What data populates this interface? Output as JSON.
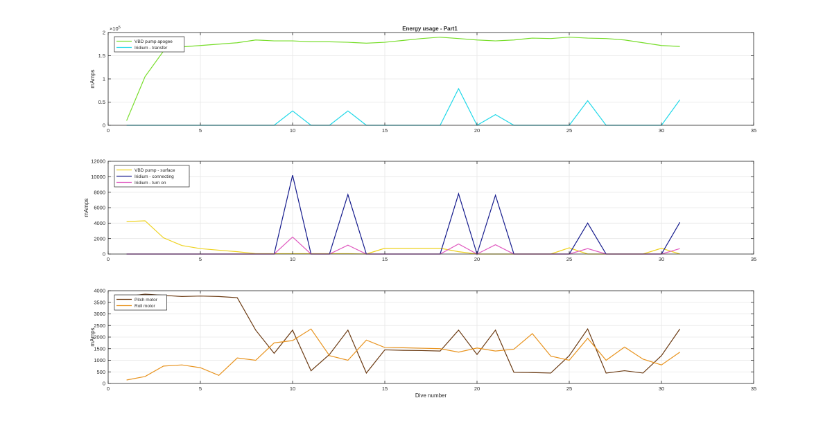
{
  "figure": {
    "title": "Energy usage - Part1"
  },
  "chart_data": [
    {
      "type": "line",
      "title": "Energy usage - Part1",
      "xlabel": "",
      "ylabel": "mAmps",
      "xlim": [
        0,
        35
      ],
      "ylim": [
        0,
        200000
      ],
      "x_ticks": [
        "0",
        "5",
        "10",
        "15",
        "20",
        "25",
        "30",
        "35"
      ],
      "y_ticks": [
        "0",
        "0.5",
        "1",
        "1.5",
        "2"
      ],
      "y_exponent_label": "×10",
      "y_exponent_power": "5",
      "grid": true,
      "legend_position": "top-left",
      "x": [
        1,
        2,
        3,
        4,
        5,
        6,
        7,
        8,
        9,
        10,
        11,
        12,
        13,
        14,
        15,
        16,
        17,
        18,
        19,
        20,
        21,
        22,
        23,
        24,
        25,
        26,
        27,
        28,
        29,
        30,
        31
      ],
      "series": [
        {
          "name": "VBD pump apogee",
          "color": "#77dd2a",
          "values": [
            10000,
            105000,
            160000,
            169000,
            172000,
            175000,
            178000,
            184000,
            182000,
            182000,
            180000,
            180000,
            179000,
            177000,
            179000,
            183000,
            187000,
            190000,
            187000,
            184000,
            182000,
            184000,
            188000,
            187000,
            190000,
            188000,
            187000,
            184000,
            178000,
            172000,
            170000
          ]
        },
        {
          "name": "Iridium - transfer",
          "color": "#22d8e8",
          "values": [
            0,
            0,
            0,
            0,
            0,
            0,
            0,
            0,
            0,
            31000,
            0,
            0,
            31000,
            0,
            0,
            0,
            0,
            0,
            79000,
            0,
            23000,
            0,
            0,
            0,
            0,
            53000,
            0,
            0,
            0,
            0,
            55000
          ]
        }
      ]
    },
    {
      "type": "line",
      "title": "",
      "xlabel": "",
      "ylabel": "mAmps",
      "xlim": [
        0,
        35
      ],
      "ylim": [
        0,
        12000
      ],
      "x_ticks": [
        "0",
        "5",
        "10",
        "15",
        "20",
        "25",
        "30",
        "35"
      ],
      "y_ticks": [
        "0",
        "2000",
        "4000",
        "6000",
        "8000",
        "10000",
        "12000"
      ],
      "grid": true,
      "legend_position": "top-left",
      "x": [
        1,
        2,
        3,
        4,
        5,
        6,
        7,
        8,
        9,
        10,
        11,
        12,
        13,
        14,
        15,
        16,
        17,
        18,
        19,
        20,
        21,
        22,
        23,
        24,
        25,
        26,
        27,
        28,
        29,
        30,
        31
      ],
      "series": [
        {
          "name": "VBD pump - surface",
          "color": "#eed21e",
          "values": [
            4200,
            4300,
            2100,
            1100,
            700,
            500,
            300,
            50,
            50,
            50,
            50,
            50,
            50,
            0,
            750,
            750,
            750,
            750,
            300,
            0,
            0,
            0,
            0,
            0,
            800,
            0,
            0,
            0,
            0,
            750,
            0
          ]
        },
        {
          "name": "Iridium - connecting",
          "color": "#141a8c",
          "values": [
            0,
            0,
            0,
            0,
            0,
            0,
            0,
            0,
            0,
            10200,
            0,
            0,
            7700,
            0,
            0,
            0,
            0,
            0,
            7800,
            0,
            7600,
            0,
            0,
            0,
            0,
            4000,
            0,
            0,
            0,
            0,
            4100
          ]
        },
        {
          "name": "Iridium - turn on",
          "color": "#e05ac0",
          "values": [
            0,
            0,
            0,
            0,
            0,
            0,
            0,
            0,
            0,
            2200,
            0,
            0,
            1150,
            0,
            0,
            0,
            0,
            0,
            1300,
            0,
            1200,
            0,
            0,
            0,
            0,
            700,
            0,
            0,
            0,
            0,
            700
          ]
        }
      ]
    },
    {
      "type": "line",
      "title": "",
      "xlabel": "Dive number",
      "ylabel": "mAmps",
      "xlim": [
        0,
        35
      ],
      "ylim": [
        0,
        4000
      ],
      "x_ticks": [
        "0",
        "5",
        "10",
        "15",
        "20",
        "25",
        "30",
        "35"
      ],
      "y_ticks": [
        "0",
        "500",
        "1000",
        "1500",
        "2000",
        "2500",
        "3000",
        "3500",
        "4000"
      ],
      "grid": true,
      "legend_position": "top-left",
      "x": [
        1,
        2,
        3,
        4,
        5,
        6,
        7,
        8,
        9,
        10,
        11,
        12,
        13,
        14,
        15,
        16,
        17,
        18,
        19,
        20,
        21,
        22,
        23,
        24,
        25,
        26,
        27,
        28,
        29,
        30,
        31
      ],
      "series": [
        {
          "name": "Pitch motor",
          "color": "#6b3a12",
          "values": [
            3750,
            3850,
            3800,
            3750,
            3770,
            3750,
            3700,
            2300,
            1300,
            2300,
            550,
            1250,
            2300,
            450,
            1450,
            1430,
            1420,
            1400,
            2300,
            1250,
            2300,
            480,
            470,
            450,
            1200,
            2350,
            450,
            550,
            450,
            1200,
            2350
          ]
        },
        {
          "name": "Roll motor",
          "color": "#e8931e",
          "values": [
            150,
            300,
            750,
            800,
            680,
            350,
            1100,
            1000,
            1750,
            1850,
            2350,
            1200,
            1000,
            1870,
            1550,
            1540,
            1520,
            1500,
            1350,
            1530,
            1400,
            1480,
            2150,
            1180,
            1000,
            1950,
            1000,
            1570,
            1050,
            800,
            1350
          ]
        }
      ]
    }
  ]
}
